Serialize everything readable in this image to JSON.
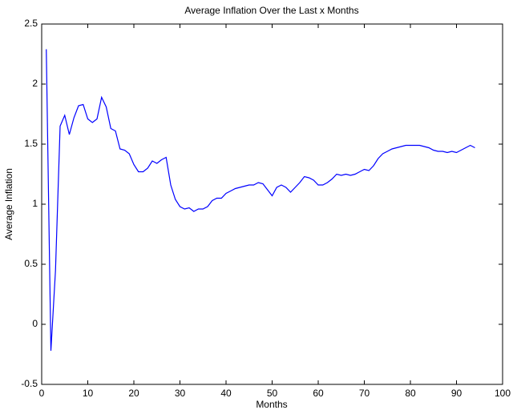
{
  "chart_data": {
    "type": "line",
    "title": "Average Inflation Over the Last x Months",
    "x_label": "Months",
    "y_label": "Average Inflation",
    "x": [
      1,
      2,
      3,
      4,
      5,
      6,
      7,
      8,
      9,
      10,
      11,
      12,
      13,
      14,
      15,
      16,
      17,
      18,
      19,
      20,
      21,
      22,
      23,
      24,
      25,
      26,
      27,
      28,
      29,
      30,
      31,
      32,
      33,
      34,
      35,
      36,
      37,
      38,
      39,
      40,
      41,
      42,
      43,
      44,
      45,
      46,
      47,
      48,
      49,
      50,
      51,
      52,
      53,
      54,
      55,
      56,
      57,
      58,
      59,
      60,
      61,
      62,
      63,
      64,
      65,
      66,
      67,
      68,
      69,
      70,
      71,
      72,
      73,
      74,
      75,
      76,
      77,
      78,
      79,
      80,
      81,
      82,
      83,
      84,
      85,
      86,
      87,
      88,
      89,
      90,
      91,
      92,
      93,
      94
    ],
    "values": [
      2.29,
      -0.22,
      0.45,
      1.65,
      1.74,
      1.58,
      1.72,
      1.82,
      1.83,
      1.71,
      1.68,
      1.71,
      1.89,
      1.81,
      1.63,
      1.61,
      1.46,
      1.45,
      1.42,
      1.33,
      1.27,
      1.27,
      1.3,
      1.36,
      1.34,
      1.37,
      1.39,
      1.16,
      1.04,
      0.98,
      0.96,
      0.97,
      0.94,
      0.96,
      0.96,
      0.98,
      1.03,
      1.05,
      1.05,
      1.09,
      1.11,
      1.13,
      1.14,
      1.15,
      1.16,
      1.16,
      1.18,
      1.17,
      1.12,
      1.07,
      1.14,
      1.16,
      1.14,
      1.1,
      1.14,
      1.18,
      1.23,
      1.22,
      1.2,
      1.16,
      1.16,
      1.18,
      1.21,
      1.25,
      1.24,
      1.25,
      1.24,
      1.25,
      1.27,
      1.29,
      1.28,
      1.32,
      1.38,
      1.42,
      1.44,
      1.46,
      1.47,
      1.48,
      1.49,
      1.49,
      1.49,
      1.49,
      1.48,
      1.47,
      1.45,
      1.44,
      1.44,
      1.43,
      1.44,
      1.43,
      1.45,
      1.47,
      1.49,
      1.47
    ],
    "color": "#0000ff",
    "xlim": [
      0,
      100
    ],
    "xticks": [
      0,
      10,
      20,
      30,
      40,
      50,
      60,
      70,
      80,
      90,
      100
    ],
    "ylim": [
      -0.5,
      2.5
    ],
    "yticks": [
      -0.5,
      0,
      0.5,
      1,
      1.5,
      2,
      2.5
    ],
    "grid": false
  }
}
